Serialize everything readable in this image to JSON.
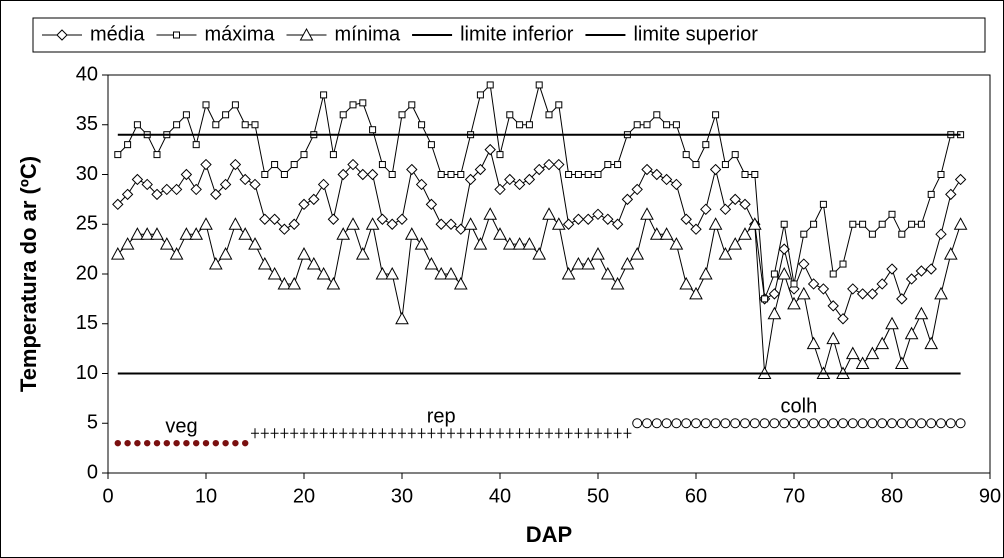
{
  "chart_data": {
    "type": "line",
    "xlabel": "DAP",
    "ylabel": "Temperatura do ar (ºC)",
    "xlim": [
      0,
      90
    ],
    "xticks": [
      0,
      10,
      20,
      30,
      40,
      50,
      60,
      70,
      80,
      90
    ],
    "ylim": [
      0,
      40
    ],
    "yticks": [
      0,
      5,
      10,
      15,
      20,
      25,
      30,
      35,
      40
    ],
    "legend": "top",
    "x": [
      1,
      2,
      3,
      4,
      5,
      6,
      7,
      8,
      9,
      10,
      11,
      12,
      13,
      14,
      15,
      16,
      17,
      18,
      19,
      20,
      21,
      22,
      23,
      24,
      25,
      26,
      27,
      28,
      29,
      30,
      31,
      32,
      33,
      34,
      35,
      36,
      37,
      38,
      39,
      40,
      41,
      42,
      43,
      44,
      45,
      46,
      47,
      48,
      49,
      50,
      51,
      52,
      53,
      54,
      55,
      56,
      57,
      58,
      59,
      60,
      61,
      62,
      63,
      64,
      65,
      66,
      67,
      68,
      69,
      70,
      71,
      72,
      73,
      74,
      75,
      76,
      77,
      78,
      79,
      80,
      81,
      82,
      83,
      84,
      85,
      86,
      87
    ],
    "series": [
      {
        "name": "média",
        "color": "#000000",
        "marker": "diamond",
        "values": [
          27,
          28,
          29.5,
          29,
          28,
          28.5,
          28.5,
          30,
          28.5,
          31,
          28,
          29,
          31,
          29.5,
          29,
          25.5,
          25.5,
          24.5,
          25,
          27,
          27.5,
          29,
          25.5,
          30,
          31,
          30,
          30,
          25.5,
          25,
          25.5,
          30.5,
          29,
          27,
          25,
          25,
          24.5,
          29.5,
          30.5,
          32.5,
          28.5,
          29.5,
          29,
          29.5,
          30.5,
          31,
          31,
          25,
          25.5,
          25.5,
          26,
          25.5,
          25,
          27.5,
          28.5,
          30.5,
          30,
          29.5,
          29,
          25.5,
          24.5,
          26.5,
          30.5,
          26.5,
          27.5,
          27,
          25,
          17.5,
          18,
          22.5,
          18.5,
          21,
          19,
          18.5,
          16.8,
          15.5,
          18.5,
          18,
          18,
          19,
          20.5,
          17.5,
          19.5,
          20.3,
          20.5,
          24,
          28,
          29.5
        ]
      },
      {
        "name": "máxima",
        "color": "#000000",
        "marker": "square",
        "values": [
          32,
          33,
          35,
          34,
          32,
          34,
          35,
          36,
          33,
          37,
          35,
          36,
          37,
          35,
          35,
          30,
          31,
          30,
          31,
          32,
          34,
          38,
          32,
          36,
          37,
          37.2,
          34.5,
          31,
          30,
          36,
          37,
          35,
          33,
          30,
          30,
          30,
          34,
          38,
          39,
          32,
          36,
          35,
          35,
          39,
          36,
          37,
          30,
          30,
          30,
          30,
          31,
          31,
          34,
          35,
          35,
          36,
          35,
          35,
          32,
          31,
          33,
          36,
          31,
          32,
          30,
          30,
          17.5,
          20,
          25,
          19,
          24,
          25,
          27,
          20,
          21,
          25,
          25,
          24,
          25,
          26,
          24,
          25,
          25,
          28,
          30,
          34,
          34
        ]
      },
      {
        "name": "mínima",
        "color": "#000000",
        "marker": "triangle",
        "values": [
          22,
          23,
          24,
          24,
          24,
          23,
          22,
          24,
          24,
          25,
          21,
          22,
          25,
          24,
          23,
          21,
          20,
          19,
          19,
          22,
          21,
          20,
          19,
          24,
          25,
          22,
          25,
          20,
          20,
          15.5,
          24,
          23,
          21,
          20,
          20,
          19,
          25,
          23,
          26,
          24,
          23,
          23,
          23,
          22,
          26,
          25,
          20,
          21,
          21,
          22,
          20,
          19,
          21,
          22,
          26,
          24,
          24,
          23,
          19,
          18,
          20,
          25,
          22,
          23,
          24,
          25,
          10,
          16,
          20,
          17,
          18,
          13,
          10,
          13.5,
          10,
          12,
          11,
          12,
          13,
          15,
          11,
          14,
          16,
          13,
          18,
          22,
          25
        ]
      },
      {
        "name": "limite inferior",
        "color": "#000000",
        "x": [
          1,
          87
        ],
        "values": [
          10,
          10
        ]
      },
      {
        "name": "limite superior",
        "color": "#000000",
        "x": [
          1,
          87
        ],
        "values": [
          34,
          34
        ]
      }
    ],
    "phases": [
      {
        "label": "veg",
        "marker": "dot",
        "color": "#7a1010",
        "x": [
          1,
          2,
          3,
          4,
          5,
          6,
          7,
          8,
          9,
          10,
          11,
          12,
          13,
          14
        ],
        "values": [
          3,
          3,
          3,
          3,
          3,
          3,
          3,
          3,
          3,
          3,
          3,
          3,
          3,
          3
        ]
      },
      {
        "label": "rep",
        "marker": "plus",
        "color": "#000000",
        "x": [
          15,
          16,
          17,
          18,
          19,
          20,
          21,
          22,
          23,
          24,
          25,
          26,
          27,
          28,
          29,
          30,
          31,
          32,
          33,
          34,
          35,
          36,
          37,
          38,
          39,
          40,
          41,
          42,
          43,
          44,
          45,
          46,
          47,
          48,
          49,
          50,
          51,
          52,
          53
        ],
        "values": [
          4,
          4,
          4,
          4,
          4,
          4,
          4,
          4,
          4,
          4,
          4,
          4,
          4,
          4,
          4,
          4,
          4,
          4,
          4,
          4,
          4,
          4,
          4,
          4,
          4,
          4,
          4,
          4,
          4,
          4,
          4,
          4,
          4,
          4,
          4,
          4,
          4,
          4,
          4
        ]
      },
      {
        "label": "colh",
        "marker": "circle",
        "color": "#000000",
        "x": [
          54,
          55,
          56,
          57,
          58,
          59,
          60,
          61,
          62,
          63,
          64,
          65,
          66,
          67,
          68,
          69,
          70,
          71,
          72,
          73,
          74,
          75,
          76,
          77,
          78,
          79,
          80,
          81,
          82,
          83,
          84,
          85,
          86,
          87
        ],
        "values": [
          5,
          5,
          5,
          5,
          5,
          5,
          5,
          5,
          5,
          5,
          5,
          5,
          5,
          5,
          5,
          5,
          5,
          5,
          5,
          5,
          5,
          5,
          5,
          5,
          5,
          5,
          5,
          5,
          5,
          5,
          5,
          5,
          5,
          5
        ]
      }
    ]
  }
}
